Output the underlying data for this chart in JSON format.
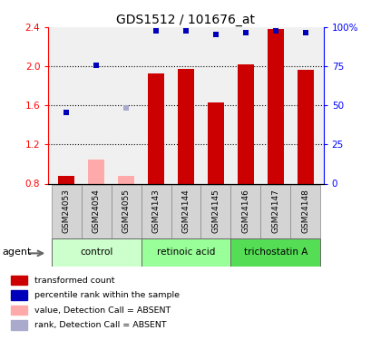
{
  "title": "GDS1512 / 101676_at",
  "samples": [
    "GSM24053",
    "GSM24054",
    "GSM24055",
    "GSM24143",
    "GSM24144",
    "GSM24145",
    "GSM24146",
    "GSM24147",
    "GSM24148"
  ],
  "groups": [
    {
      "name": "control",
      "indices": [
        0,
        1,
        2
      ],
      "color": "#ccffcc"
    },
    {
      "name": "retinoic acid",
      "indices": [
        3,
        4,
        5
      ],
      "color": "#99ff99"
    },
    {
      "name": "trichostatin A",
      "indices": [
        6,
        7,
        8
      ],
      "color": "#55dd55"
    }
  ],
  "bar_values": [
    0.88,
    1.05,
    0.88,
    1.93,
    1.97,
    1.63,
    2.02,
    2.38,
    1.96
  ],
  "bar_absent": [
    false,
    true,
    true,
    false,
    false,
    false,
    false,
    false,
    false
  ],
  "rank_values": [
    1.53,
    2.01,
    1.57,
    2.36,
    2.36,
    2.33,
    2.34,
    2.36,
    2.34
  ],
  "rank_absent": [
    false,
    false,
    true,
    false,
    false,
    false,
    false,
    false,
    false
  ],
  "ylim_left": [
    0.8,
    2.4
  ],
  "ylim_right": [
    0,
    100
  ],
  "yticks_left": [
    0.8,
    1.2,
    1.6,
    2.0,
    2.4
  ],
  "yticks_right": [
    0,
    25,
    50,
    75,
    100
  ],
  "ytick_right_labels": [
    "0",
    "25",
    "50",
    "75",
    "100%"
  ],
  "bar_color_present": "#cc0000",
  "bar_color_absent": "#ffaaaa",
  "rank_color_present": "#0000bb",
  "rank_color_absent": "#aaaacc",
  "dotted_lines": [
    1.2,
    1.6,
    2.0
  ],
  "axis_bg": "#f0f0f0",
  "legend_items": [
    {
      "color": "#cc0000",
      "label": "transformed count"
    },
    {
      "color": "#0000bb",
      "label": "percentile rank within the sample"
    },
    {
      "color": "#ffaaaa",
      "label": "value, Detection Call = ABSENT"
    },
    {
      "color": "#aaaacc",
      "label": "rank, Detection Call = ABSENT"
    }
  ]
}
